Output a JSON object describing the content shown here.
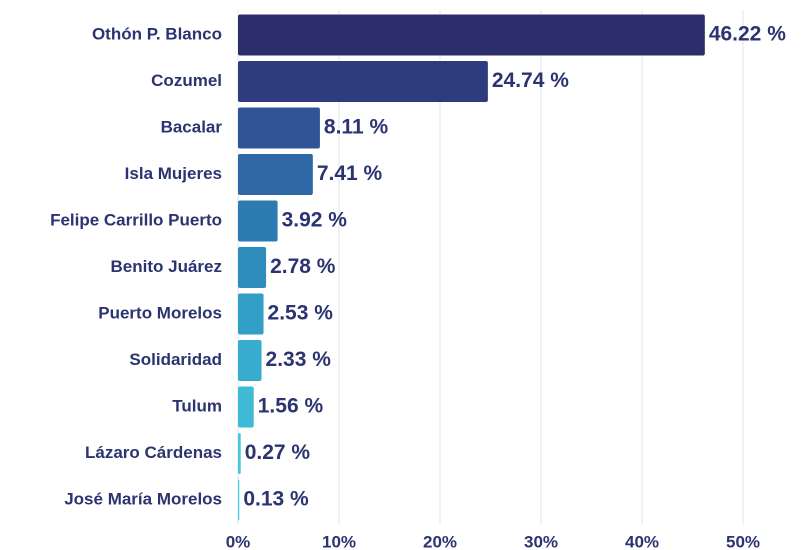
{
  "chart_data": {
    "type": "barh",
    "categories": [
      "Othón P. Blanco",
      "Cozumel",
      "Bacalar",
      "Isla Mujeres",
      "Felipe Carrillo Puerto",
      "Benito Juárez",
      "Puerto Morelos",
      "Solidaridad",
      "Tulum",
      "Lázaro Cárdenas",
      "José María Morelos"
    ],
    "values": [
      46.22,
      24.74,
      8.11,
      7.41,
      3.92,
      2.78,
      2.53,
      2.33,
      1.56,
      0.27,
      0.13
    ],
    "value_labels": [
      "46.22 %",
      "24.74 %",
      "8.11 %",
      "7.41 %",
      "3.92 %",
      "2.78 %",
      "2.53 %",
      "2.33 %",
      "1.56 %",
      "0.27 %",
      "0.13 %"
    ],
    "colors": [
      "#2b2e6a",
      "#2e3c7e",
      "#305496",
      "#2f68a6",
      "#2d7bb3",
      "#2e8dbd",
      "#339ec6",
      "#38acce",
      "#3fbad6",
      "#48c6dc",
      "#52cfe1"
    ],
    "xlim": [
      0,
      50
    ],
    "xticks": [
      {
        "value": 0,
        "label": "0%"
      },
      {
        "value": 10,
        "label": "10%"
      },
      {
        "value": 20,
        "label": "20%"
      },
      {
        "value": 30,
        "label": "30%"
      },
      {
        "value": 40,
        "label": "40%"
      },
      {
        "value": 50,
        "label": "50%"
      }
    ],
    "grid": true
  }
}
